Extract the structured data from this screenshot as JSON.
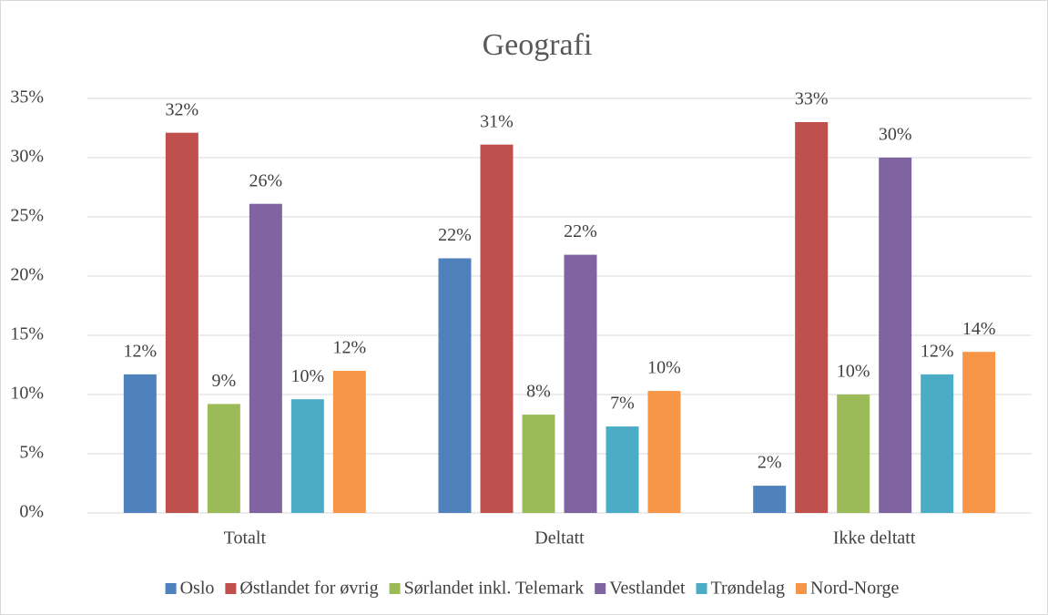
{
  "chart_data": {
    "type": "bar",
    "title": "Geografi",
    "categories": [
      "Totalt",
      "Deltatt",
      "Ikke deltatt"
    ],
    "series": [
      {
        "name": "Oslo",
        "color": "#4f81bd",
        "values": [
          11.7,
          21.5,
          2.3
        ],
        "value_labels": [
          "12%",
          "22%",
          "2%"
        ]
      },
      {
        "name": "Østlandet for øvrig",
        "color": "#c0504d",
        "values": [
          32.1,
          31.1,
          33.0
        ],
        "value_labels": [
          "32%",
          "31%",
          "33%"
        ]
      },
      {
        "name": "Sørlandet inkl. Telemark",
        "color": "#9bbb59",
        "values": [
          9.2,
          8.3,
          10.0
        ],
        "value_labels": [
          "9%",
          "8%",
          "10%"
        ]
      },
      {
        "name": "Vestlandet",
        "color": "#8064a2",
        "values": [
          26.1,
          21.8,
          30.0
        ],
        "value_labels": [
          "26%",
          "22%",
          "30%"
        ]
      },
      {
        "name": "Trøndelag",
        "color": "#4bacc6",
        "values": [
          9.6,
          7.3,
          11.7
        ],
        "value_labels": [
          "10%",
          "7%",
          "12%"
        ]
      },
      {
        "name": "Nord-Norge",
        "color": "#f79646",
        "values": [
          12.0,
          10.3,
          13.6
        ],
        "value_labels": [
          "12%",
          "10%",
          "14%"
        ]
      }
    ],
    "ylim": [
      0,
      35
    ],
    "yticks": [
      {
        "value": 0,
        "label": "0%"
      },
      {
        "value": 5,
        "label": "5%"
      },
      {
        "value": 10,
        "label": "10%"
      },
      {
        "value": 15,
        "label": "15%"
      },
      {
        "value": 20,
        "label": "20%"
      },
      {
        "value": 25,
        "label": "25%"
      },
      {
        "value": 30,
        "label": "30%"
      },
      {
        "value": 35,
        "label": "35%"
      }
    ],
    "grid": true,
    "legend": "bottom"
  }
}
